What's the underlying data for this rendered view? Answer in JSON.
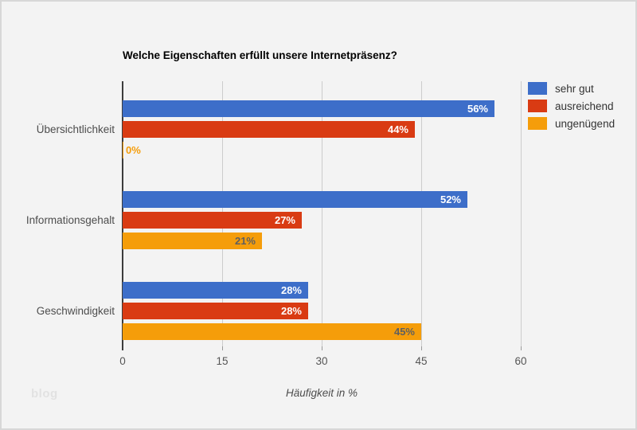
{
  "window": {
    "background_color": "#f3f3f3",
    "border_color": "#d7d7d7"
  },
  "watermark": "blog",
  "chart_data": {
    "type": "bar",
    "orientation": "horizontal",
    "title": "Welche Eigenschaften erfüllt unsere Internetpräsenz?",
    "xlabel": "Häufigkeit in %",
    "categories": [
      "Übersichtlichkeit",
      "Informationsgehalt",
      "Geschwindigkeit"
    ],
    "series": [
      {
        "name": "sehr gut",
        "color": "#3d6ec9",
        "label_color": "#ffffff",
        "values": [
          56,
          52,
          28
        ]
      },
      {
        "name": "ausreichend",
        "color": "#d93b13",
        "label_color": "#ffffff",
        "values": [
          44,
          27,
          28
        ]
      },
      {
        "name": "ungenügend",
        "color": "#f59d0a",
        "label_color": "#5f5f5f",
        "values": [
          0,
          21,
          45
        ]
      }
    ],
    "value_suffix": "%",
    "x_ticks": [
      0,
      15,
      30,
      45,
      60
    ],
    "xlim": [
      0,
      60
    ],
    "grid": true,
    "gridline_color": "#cccccc",
    "axis_color": "#3c3c3c",
    "legend_position": "right"
  }
}
